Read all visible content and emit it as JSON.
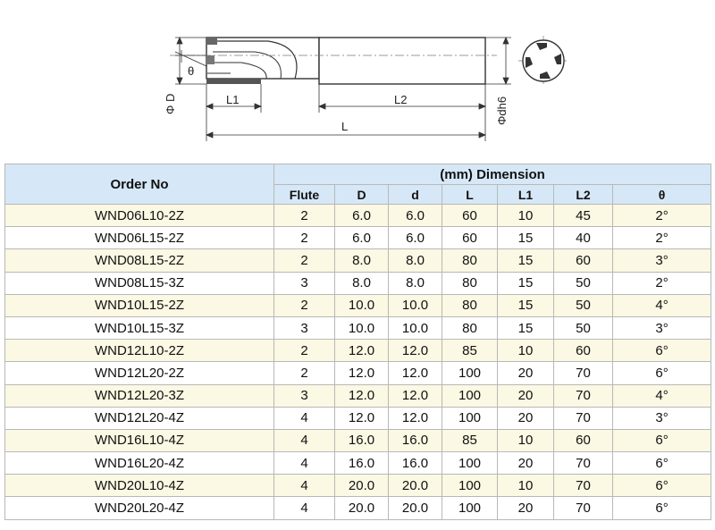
{
  "drawing": {
    "labels": {
      "theta": "θ",
      "phi_d": "Φ D",
      "l1": "L1",
      "l2": "L2",
      "l": "L",
      "phi_dh6": "Φdh6"
    }
  },
  "table": {
    "order_header": "Order No",
    "dimension_header": "(mm) Dimension",
    "columns": [
      "Flute",
      "D",
      "d",
      "L",
      "L1",
      "L2",
      "θ"
    ],
    "rows": [
      [
        "WND06L10-2Z",
        "2",
        "6.0",
        "6.0",
        "60",
        "10",
        "45",
        "2°"
      ],
      [
        "WND06L15-2Z",
        "2",
        "6.0",
        "6.0",
        "60",
        "15",
        "40",
        "2°"
      ],
      [
        "WND08L15-2Z",
        "2",
        "8.0",
        "8.0",
        "80",
        "15",
        "60",
        "3°"
      ],
      [
        "WND08L15-3Z",
        "3",
        "8.0",
        "8.0",
        "80",
        "15",
        "50",
        "2°"
      ],
      [
        "WND10L15-2Z",
        "2",
        "10.0",
        "10.0",
        "80",
        "15",
        "50",
        "4°"
      ],
      [
        "WND10L15-3Z",
        "3",
        "10.0",
        "10.0",
        "80",
        "15",
        "50",
        "3°"
      ],
      [
        "WND12L10-2Z",
        "2",
        "12.0",
        "12.0",
        "85",
        "10",
        "60",
        "6°"
      ],
      [
        "WND12L20-2Z",
        "2",
        "12.0",
        "12.0",
        "100",
        "20",
        "70",
        "6°"
      ],
      [
        "WND12L20-3Z",
        "3",
        "12.0",
        "12.0",
        "100",
        "20",
        "70",
        "4°"
      ],
      [
        "WND12L20-4Z",
        "4",
        "12.0",
        "12.0",
        "100",
        "20",
        "70",
        "3°"
      ],
      [
        "WND16L10-4Z",
        "4",
        "16.0",
        "16.0",
        "85",
        "10",
        "60",
        "6°"
      ],
      [
        "WND16L20-4Z",
        "4",
        "16.0",
        "16.0",
        "100",
        "20",
        "70",
        "6°"
      ],
      [
        "WND20L10-4Z",
        "4",
        "20.0",
        "20.0",
        "100",
        "10",
        "70",
        "6°"
      ],
      [
        "WND20L20-4Z",
        "4",
        "20.0",
        "20.0",
        "100",
        "20",
        "70",
        "6°"
      ]
    ]
  }
}
